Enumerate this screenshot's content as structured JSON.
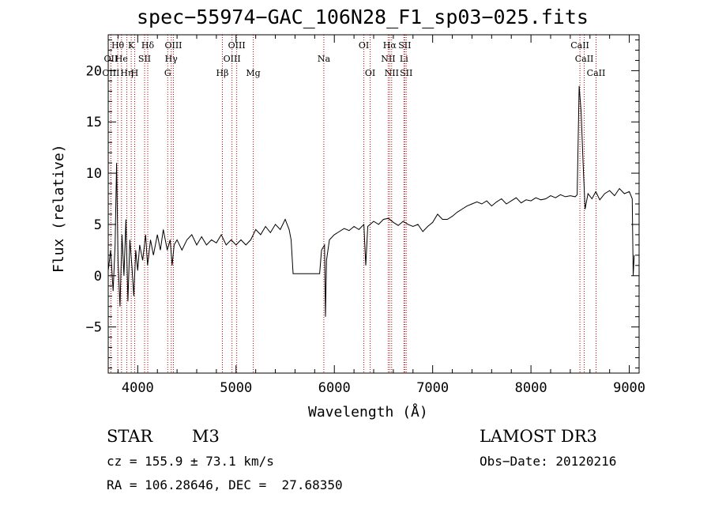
{
  "chart_data": {
    "type": "line",
    "title": "spec−55974−GAC_106N28_F1_sp03−025.fits",
    "xlabel": "Wavelength (Å)",
    "ylabel": "Flux (relative)",
    "xlim": [
      3700,
      9100
    ],
    "ylim": [
      -9.5,
      23.5
    ],
    "xticks": [
      4000,
      5000,
      6000,
      7000,
      8000,
      9000
    ],
    "xtick_labels": [
      "4000",
      "5000",
      "6000",
      "7000",
      "8000",
      "9000"
    ],
    "yticks": [
      -5,
      0,
      5,
      10,
      15,
      20
    ],
    "ytick_labels": [
      "−5",
      "0",
      "5",
      "10",
      "15",
      "20"
    ],
    "series": [
      {
        "name": "flux",
        "color": "#000000",
        "points": [
          [
            3700,
            0.5
          ],
          [
            3725,
            2.5
          ],
          [
            3750,
            -1.5
          ],
          [
            3770,
            3.0
          ],
          [
            3785,
            11.0
          ],
          [
            3800,
            1.5
          ],
          [
            3820,
            -3.0
          ],
          [
            3840,
            4.0
          ],
          [
            3860,
            0.0
          ],
          [
            3880,
            5.5
          ],
          [
            3900,
            -2.5
          ],
          [
            3920,
            3.5
          ],
          [
            3940,
            1.0
          ],
          [
            3960,
            -2.0
          ],
          [
            3980,
            2.5
          ],
          [
            4000,
            0.5
          ],
          [
            4020,
            3.0
          ],
          [
            4050,
            1.5
          ],
          [
            4080,
            4.0
          ],
          [
            4100,
            1.0
          ],
          [
            4130,
            3.5
          ],
          [
            4160,
            2.0
          ],
          [
            4200,
            4.0
          ],
          [
            4230,
            2.5
          ],
          [
            4260,
            4.5
          ],
          [
            4300,
            2.5
          ],
          [
            4330,
            3.5
          ],
          [
            4350,
            1.0
          ],
          [
            4370,
            3.0
          ],
          [
            4400,
            3.5
          ],
          [
            4450,
            2.5
          ],
          [
            4500,
            3.5
          ],
          [
            4550,
            4.0
          ],
          [
            4600,
            3.0
          ],
          [
            4650,
            3.8
          ],
          [
            4700,
            3.0
          ],
          [
            4750,
            3.5
          ],
          [
            4800,
            3.2
          ],
          [
            4850,
            4.0
          ],
          [
            4900,
            3.0
          ],
          [
            4950,
            3.5
          ],
          [
            5000,
            3.0
          ],
          [
            5050,
            3.5
          ],
          [
            5100,
            3.0
          ],
          [
            5150,
            3.5
          ],
          [
            5200,
            4.5
          ],
          [
            5250,
            4.0
          ],
          [
            5300,
            4.8
          ],
          [
            5350,
            4.2
          ],
          [
            5400,
            5.0
          ],
          [
            5450,
            4.5
          ],
          [
            5500,
            5.5
          ],
          [
            5540,
            4.5
          ],
          [
            5560,
            3.5
          ],
          [
            5580,
            0.2
          ],
          [
            5800,
            0.2
          ],
          [
            5850,
            0.2
          ],
          [
            5870,
            2.5
          ],
          [
            5900,
            3.0
          ],
          [
            5910,
            -4.0
          ],
          [
            5920,
            1.5
          ],
          [
            5950,
            3.5
          ],
          [
            6000,
            4.0
          ],
          [
            6050,
            4.3
          ],
          [
            6100,
            4.6
          ],
          [
            6150,
            4.4
          ],
          [
            6200,
            4.8
          ],
          [
            6250,
            4.5
          ],
          [
            6300,
            5.0
          ],
          [
            6320,
            1.0
          ],
          [
            6340,
            4.8
          ],
          [
            6400,
            5.3
          ],
          [
            6450,
            5.0
          ],
          [
            6500,
            5.5
          ],
          [
            6550,
            5.6
          ],
          [
            6600,
            5.2
          ],
          [
            6650,
            4.9
          ],
          [
            6700,
            5.3
          ],
          [
            6750,
            5.0
          ],
          [
            6800,
            4.8
          ],
          [
            6850,
            5.0
          ],
          [
            6900,
            4.3
          ],
          [
            6950,
            4.8
          ],
          [
            7000,
            5.2
          ],
          [
            7050,
            6.0
          ],
          [
            7100,
            5.5
          ],
          [
            7150,
            5.5
          ],
          [
            7200,
            5.8
          ],
          [
            7250,
            6.2
          ],
          [
            7300,
            6.5
          ],
          [
            7350,
            6.8
          ],
          [
            7400,
            7.0
          ],
          [
            7450,
            7.2
          ],
          [
            7500,
            7.0
          ],
          [
            7550,
            7.3
          ],
          [
            7600,
            6.8
          ],
          [
            7650,
            7.2
          ],
          [
            7700,
            7.5
          ],
          [
            7750,
            7.0
          ],
          [
            7800,
            7.3
          ],
          [
            7850,
            7.6
          ],
          [
            7900,
            7.1
          ],
          [
            7950,
            7.4
          ],
          [
            8000,
            7.3
          ],
          [
            8050,
            7.6
          ],
          [
            8100,
            7.4
          ],
          [
            8150,
            7.5
          ],
          [
            8200,
            7.8
          ],
          [
            8250,
            7.6
          ],
          [
            8300,
            7.9
          ],
          [
            8350,
            7.7
          ],
          [
            8400,
            7.8
          ],
          [
            8450,
            7.7
          ],
          [
            8470,
            7.9
          ],
          [
            8490,
            18.5
          ],
          [
            8510,
            16.0
          ],
          [
            8530,
            11.0
          ],
          [
            8550,
            6.5
          ],
          [
            8580,
            8.0
          ],
          [
            8620,
            7.5
          ],
          [
            8660,
            8.2
          ],
          [
            8700,
            7.4
          ],
          [
            8750,
            8.0
          ],
          [
            8800,
            8.3
          ],
          [
            8850,
            7.8
          ],
          [
            8900,
            8.5
          ],
          [
            8950,
            8.0
          ],
          [
            9000,
            8.2
          ],
          [
            9030,
            7.5
          ],
          [
            9040,
            0.0
          ],
          [
            9050,
            2.0
          ]
        ]
      }
    ],
    "lines": [
      {
        "label": "Hθ",
        "wave": 3797,
        "row": 0
      },
      {
        "label": "OII",
        "wave": 3727,
        "row": 1
      },
      {
        "label": "OIII",
        "wave": 3727,
        "row": 2
      },
      {
        "label": "He",
        "wave": 3835,
        "row": 1
      },
      {
        "label": "Hη",
        "wave": 3889,
        "row": 2
      },
      {
        "label": "K",
        "wave": 3934,
        "row": 0
      },
      {
        "label": "SII",
        "wave": 4070,
        "row": 1
      },
      {
        "label": "H",
        "wave": 3969,
        "row": 2
      },
      {
        "label": "Hδ",
        "wave": 4102,
        "row": 0
      },
      {
        "label": "OIII",
        "wave": 4363,
        "row": 0
      },
      {
        "label": "Hγ",
        "wave": 4341,
        "row": 1
      },
      {
        "label": "G",
        "wave": 4305,
        "row": 2
      },
      {
        "label": "OIII",
        "wave": 5007,
        "row": 0
      },
      {
        "label": "OIII",
        "wave": 4959,
        "row": 1
      },
      {
        "label": "Hβ",
        "wave": 4861,
        "row": 2
      },
      {
        "label": "Mg",
        "wave": 5175,
        "row": 2
      },
      {
        "label": "Na",
        "wave": 5893,
        "row": 1
      },
      {
        "label": "OI",
        "wave": 6300,
        "row": 0
      },
      {
        "label": "OI",
        "wave": 6364,
        "row": 2
      },
      {
        "label": "Hα",
        "wave": 6563,
        "row": 0
      },
      {
        "label": "SII",
        "wave": 6716,
        "row": 0
      },
      {
        "label": "NII",
        "wave": 6548,
        "row": 1
      },
      {
        "label": "Li",
        "wave": 6708,
        "row": 1
      },
      {
        "label": "NII",
        "wave": 6583,
        "row": 2
      },
      {
        "label": "SII",
        "wave": 6731,
        "row": 2
      },
      {
        "label": "CaII",
        "wave": 8498,
        "row": 0
      },
      {
        "label": "CaII",
        "wave": 8542,
        "row": 1
      },
      {
        "label": "CaII",
        "wave": 8662,
        "row": 2
      }
    ]
  },
  "info": {
    "object_class": "STAR",
    "subclass": "M3",
    "survey": "LAMOST DR3",
    "cz": "cz = 155.9 ± 73.1 km/s",
    "obs_date": "Obs−Date: 20120216",
    "radec": "RA = 106.28646, DEC =  27.68350"
  },
  "colors": {
    "line_marker": "#c00000",
    "spectrum": "#000000",
    "axes": "#000000"
  }
}
